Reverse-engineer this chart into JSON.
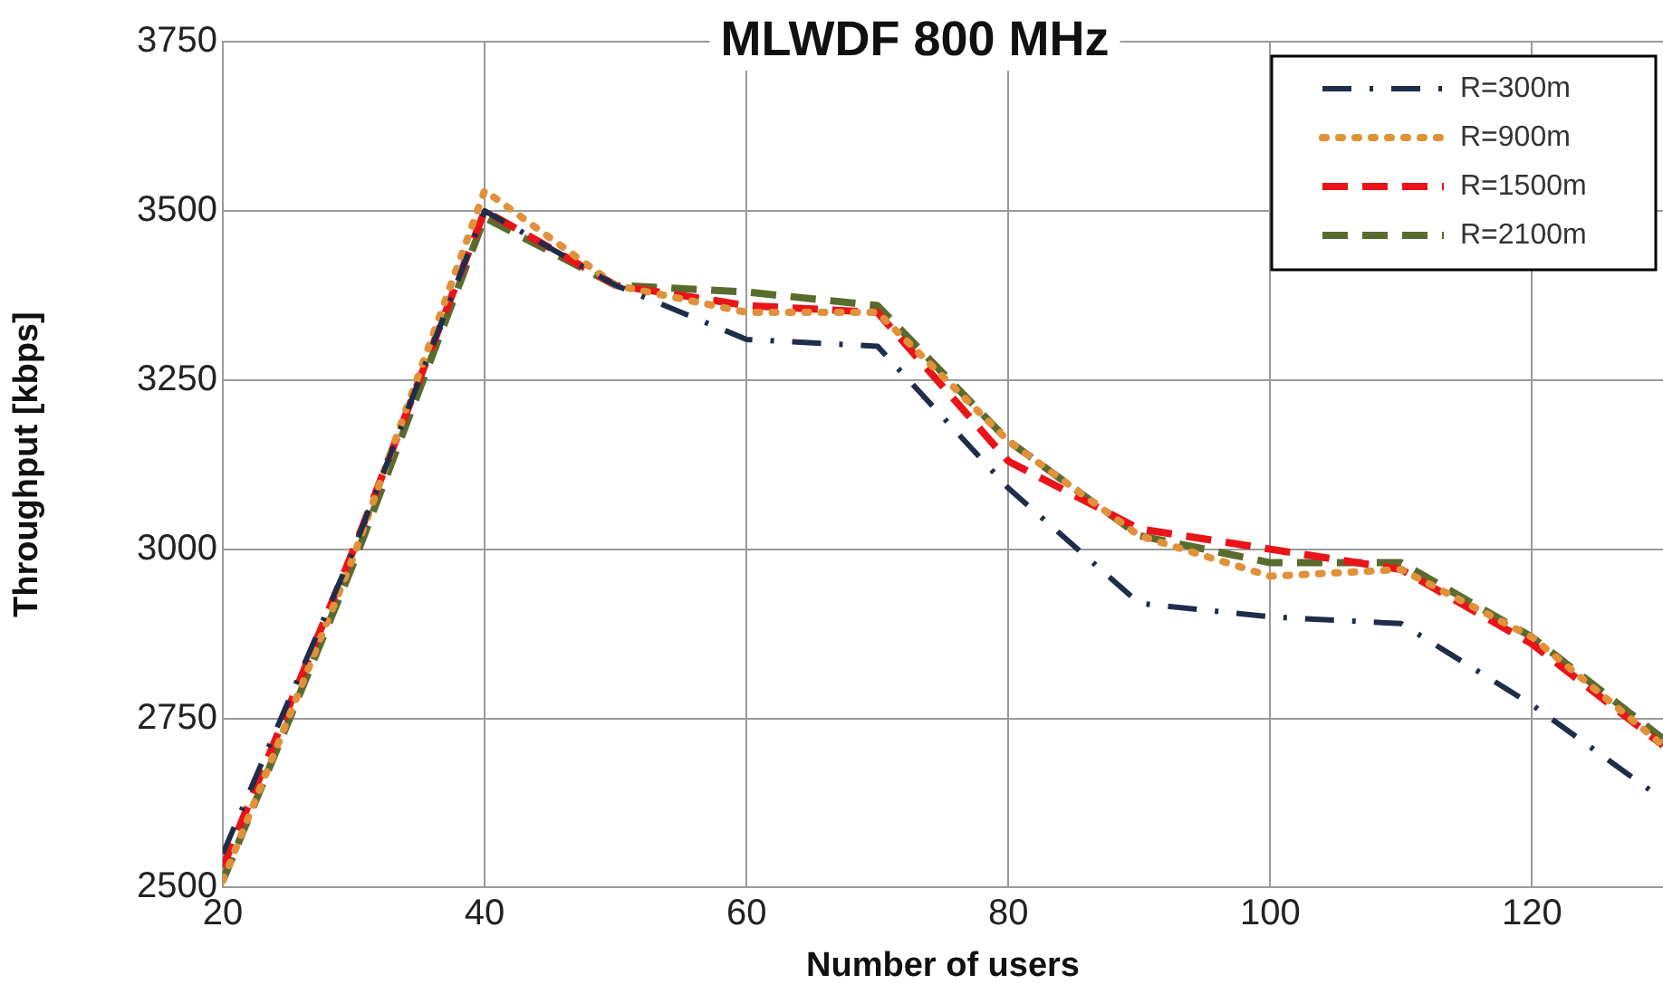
{
  "chart_data": {
    "type": "line",
    "title": "MLWDF 800 MHz",
    "xlabel": "Number of users",
    "ylabel": "Throughput [kbps]",
    "x": [
      20,
      30,
      40,
      50,
      60,
      70,
      80,
      90,
      100,
      110,
      120,
      130
    ],
    "series": [
      {
        "name": "R=300m",
        "color": "#1f2d4a",
        "line_style": "dashdot",
        "values": [
          2550,
          3000,
          3500,
          3390,
          3310,
          3300,
          3090,
          2920,
          2900,
          2890,
          2770,
          2630
        ]
      },
      {
        "name": "R=900m",
        "color": "#e0913a",
        "line_style": "dotted",
        "values": [
          2510,
          2990,
          3530,
          3390,
          3350,
          3350,
          3160,
          3020,
          2960,
          2970,
          2870,
          2710
        ]
      },
      {
        "name": "R=1500m",
        "color": "#e8141a",
        "line_style": "dashed",
        "values": [
          2530,
          3000,
          3500,
          3390,
          3360,
          3350,
          3130,
          3030,
          3000,
          2970,
          2860,
          2710
        ]
      },
      {
        "name": "R=2100m",
        "color": "#5a6b2e",
        "line_style": "dashed",
        "values": [
          2510,
          2980,
          3490,
          3390,
          3380,
          3360,
          3160,
          3020,
          2980,
          2980,
          2870,
          2720
        ]
      }
    ],
    "xlim": [
      20,
      130
    ],
    "xticks": [
      20,
      40,
      60,
      80,
      100,
      120
    ],
    "ylim": [
      2500,
      3750
    ],
    "yticks": [
      2500,
      2750,
      3000,
      3250,
      3500,
      3750
    ],
    "grid": true,
    "legend": "top right",
    "marker": "none"
  }
}
